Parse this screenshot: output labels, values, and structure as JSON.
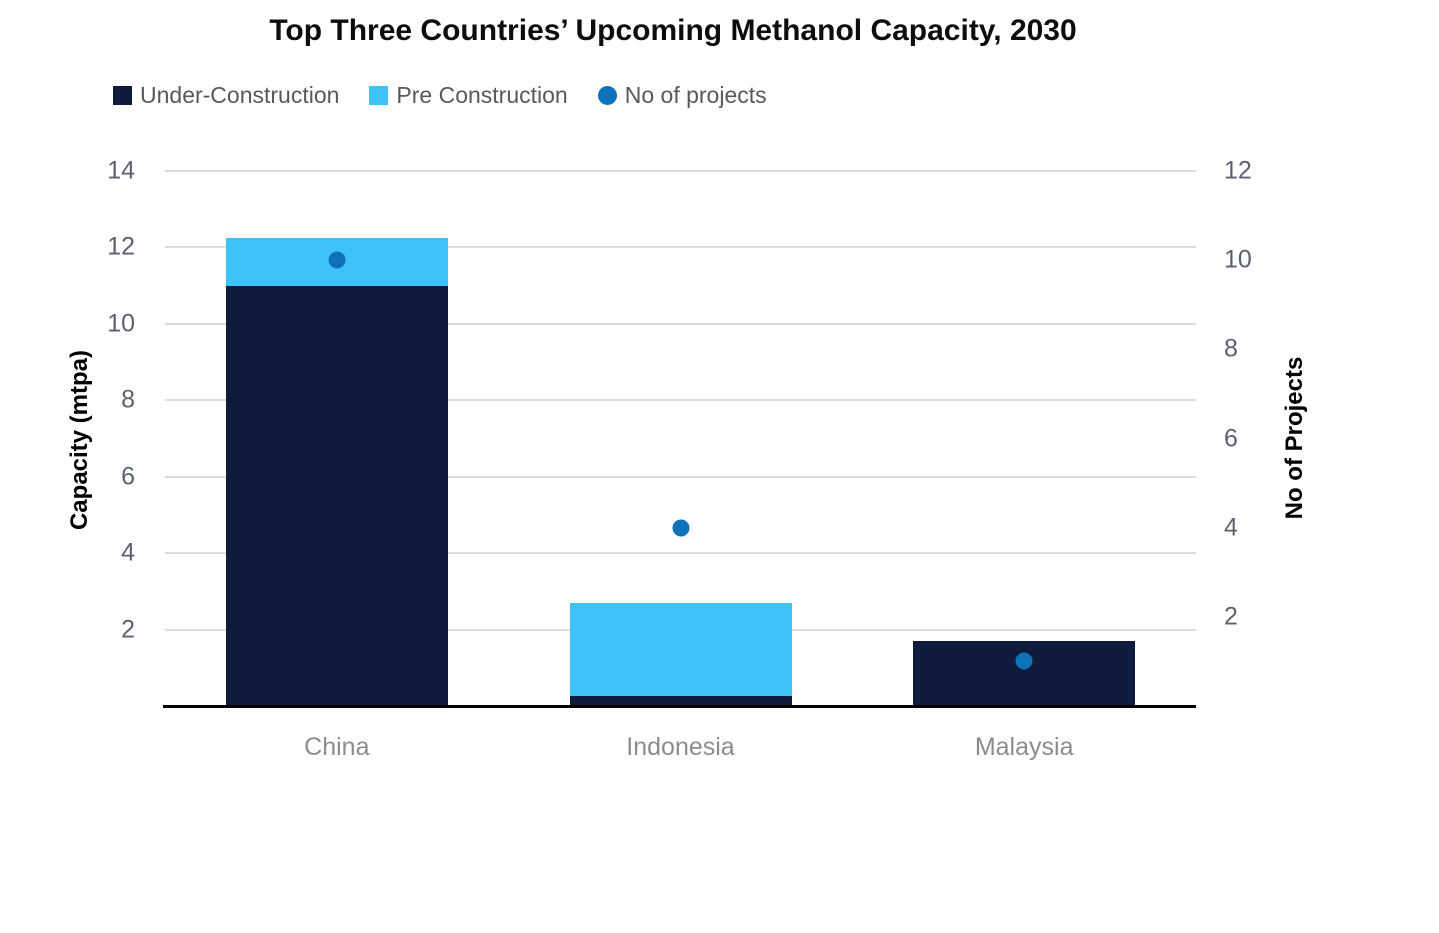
{
  "chart_data": {
    "type": "bar",
    "title": "Top Three Countries’ Upcoming Methanol Capacity, 2030",
    "categories": [
      "China",
      "Indonesia",
      "Malaysia"
    ],
    "series": [
      {
        "name": "Under-Construction",
        "values": [
          11.0,
          0.25,
          1.7
        ],
        "color": "#0E1B3C"
      },
      {
        "name": "Pre Construction",
        "values": [
          1.25,
          2.45,
          0
        ],
        "color": "#3EC3F9"
      }
    ],
    "dot_series": {
      "name": "No of projects",
      "values": [
        10,
        4,
        1
      ],
      "color": "#0E72BA",
      "axis": "right",
      "marker": "circle"
    },
    "xlabel": "",
    "ylabel_left": "Capacity (mtpa)",
    "ylabel_right": "No of Projects",
    "ylim_left": [
      0,
      14
    ],
    "ylim_right": [
      0,
      12
    ],
    "ytick_step": 2,
    "grid": true,
    "stacked": true,
    "legend_position": "top-left",
    "colors": {
      "title_text": "#0D0D0D",
      "legend_text": "#595959",
      "tick_label": "#5B6170",
      "category_label": "#898D92",
      "axis_title_text": "#000000",
      "gridline": "#DCDCDC",
      "axis_line": "#000000",
      "background": "#FFFFFF"
    }
  }
}
